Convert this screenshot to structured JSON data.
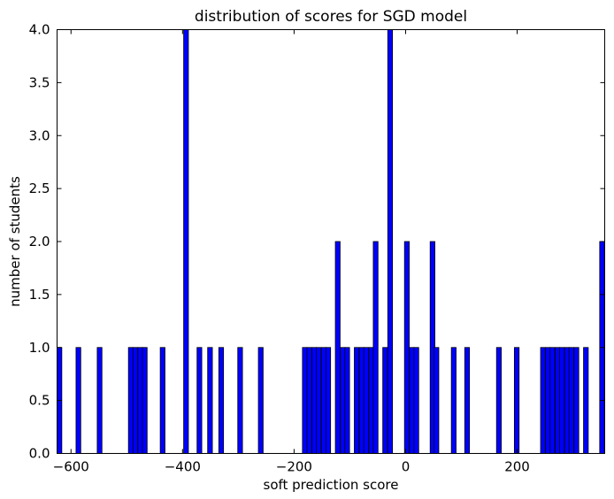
{
  "chart_data": {
    "type": "bar",
    "title": "distribution of scores for SGD model",
    "xlabel": "soft prediction score",
    "ylabel": "number of students",
    "xlim": [
      -625,
      357
    ],
    "ylim": [
      0,
      4.0
    ],
    "bar_width": 8.5,
    "bar_color": "#0000ff",
    "grid": false,
    "xticks": [
      -600,
      -400,
      -200,
      0,
      200
    ],
    "xtick_labels": [
      "−600",
      "−400",
      "−200",
      "0",
      "200"
    ],
    "yticks": [
      0.0,
      0.5,
      1.0,
      1.5,
      2.0,
      2.5,
      3.0,
      3.5,
      4.0
    ],
    "ytick_labels": [
      "0.0",
      "0.5",
      "1.0",
      "1.5",
      "2.0",
      "2.5",
      "3.0",
      "3.5",
      "4.0"
    ],
    "bins": [
      {
        "x": -625,
        "value": 1
      },
      {
        "x": -591,
        "value": 1
      },
      {
        "x": -553,
        "value": 1
      },
      {
        "x": -497,
        "value": 1
      },
      {
        "x": -489,
        "value": 1
      },
      {
        "x": -480,
        "value": 1
      },
      {
        "x": -472,
        "value": 1
      },
      {
        "x": -440,
        "value": 1
      },
      {
        "x": -398,
        "value": 4
      },
      {
        "x": -374,
        "value": 1
      },
      {
        "x": -355,
        "value": 1
      },
      {
        "x": -335,
        "value": 1
      },
      {
        "x": -301,
        "value": 1
      },
      {
        "x": -264,
        "value": 1
      },
      {
        "x": -185,
        "value": 1
      },
      {
        "x": -177,
        "value": 1
      },
      {
        "x": -168,
        "value": 1
      },
      {
        "x": -160,
        "value": 1
      },
      {
        "x": -151,
        "value": 1
      },
      {
        "x": -143,
        "value": 1
      },
      {
        "x": -126,
        "value": 2
      },
      {
        "x": -117,
        "value": 1
      },
      {
        "x": -109,
        "value": 1
      },
      {
        "x": -92,
        "value": 1
      },
      {
        "x": -83,
        "value": 1
      },
      {
        "x": -75,
        "value": 1
      },
      {
        "x": -66,
        "value": 1
      },
      {
        "x": -58,
        "value": 2
      },
      {
        "x": -41,
        "value": 1
      },
      {
        "x": -32,
        "value": 4
      },
      {
        "x": -2,
        "value": 2
      },
      {
        "x": 7,
        "value": 1
      },
      {
        "x": 15,
        "value": 1
      },
      {
        "x": 44,
        "value": 2
      },
      {
        "x": 51,
        "value": 1
      },
      {
        "x": 82,
        "value": 1
      },
      {
        "x": 106,
        "value": 1
      },
      {
        "x": 163,
        "value": 1
      },
      {
        "x": 195,
        "value": 1
      },
      {
        "x": 242,
        "value": 1
      },
      {
        "x": 251,
        "value": 1
      },
      {
        "x": 259,
        "value": 1
      },
      {
        "x": 268,
        "value": 1
      },
      {
        "x": 276,
        "value": 1
      },
      {
        "x": 285,
        "value": 1
      },
      {
        "x": 293,
        "value": 1
      },
      {
        "x": 302,
        "value": 1
      },
      {
        "x": 319,
        "value": 1
      },
      {
        "x": 348,
        "value": 2
      }
    ]
  }
}
